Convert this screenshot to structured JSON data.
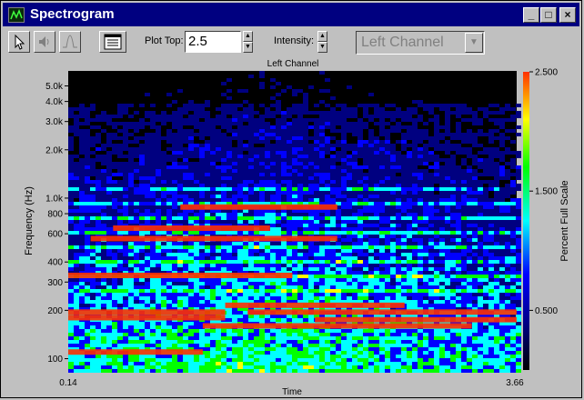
{
  "window": {
    "title": "Spectrogram",
    "minimize_glyph": "_",
    "maximize_glyph": "□",
    "close_glyph": "×"
  },
  "toolbar": {
    "plot_top_label": "Plot Top:",
    "plot_top_value": "2.5",
    "intensity_label": "Intensity:",
    "channel_select": "Left Channel"
  },
  "chart": {
    "title": "Left Channel",
    "xlabel": "Time",
    "ylabel": "Frequency (Hz)",
    "colorbar_label": "Percent Full Scale",
    "x_start": "0.14",
    "x_end": "3.66",
    "y_ticks": [
      "5.0k",
      "4.0k",
      "3.0k",
      "2.0k",
      "1.0k",
      "800",
      "600",
      "400",
      "300",
      "200",
      "100"
    ],
    "colorbar_ticks": [
      "2.500",
      "1.500",
      "0.500"
    ]
  },
  "chart_data": {
    "type": "heatmap",
    "title": "Left Channel",
    "xlabel": "Time",
    "ylabel": "Frequency (Hz)",
    "x_range": [
      0.14,
      3.66
    ],
    "y_scale": "log",
    "y_ticks": [
      100,
      200,
      300,
      400,
      600,
      800,
      1000,
      2000,
      3000,
      4000,
      5000
    ],
    "colorbar": {
      "label": "Percent Full Scale",
      "ticks": [
        0.5,
        1.5,
        2.5
      ],
      "range": [
        0,
        2.5
      ]
    },
    "colors": [
      "#000000",
      "#000080",
      "#0000ff",
      "#00ffff",
      "#00ff00",
      "#ffff00",
      "#ff3000"
    ]
  }
}
